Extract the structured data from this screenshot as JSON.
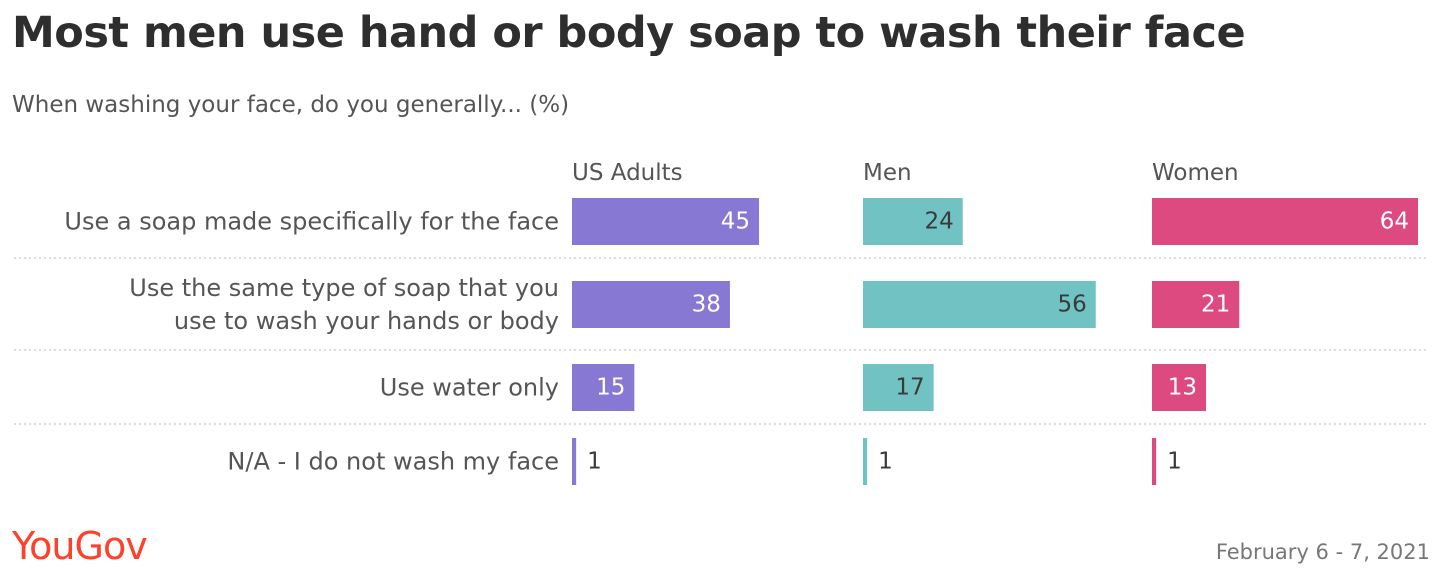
{
  "header": {
    "title": "Most men use hand or body soap to wash their face",
    "subtitle": "When washing your face, do you generally... (%)"
  },
  "footer": {
    "brand": "YouGov",
    "date": "February 6 - 7, 2021"
  },
  "chart_data": {
    "type": "bar",
    "orientation": "horizontal",
    "categories": [
      [
        "Use a soap made specifically for the face"
      ],
      [
        "Use the same type of soap that you",
        "use to wash your hands or body"
      ],
      [
        "Use water only"
      ],
      [
        "N/A - I do not wash my face"
      ]
    ],
    "series": [
      {
        "name": "US Adults",
        "values": [
          45,
          38,
          15,
          1
        ],
        "color": "#8778d4"
      },
      {
        "name": "Men",
        "values": [
          24,
          56,
          17,
          1
        ],
        "color": "#71c3c3"
      },
      {
        "name": "Women",
        "values": [
          64,
          21,
          13,
          1
        ],
        "color": "#dc4a7f"
      }
    ],
    "label_colors": {
      "inside_dark": "#3a3a3a",
      "inside_light": "#ffffff",
      "outside": "#3a3a3a"
    },
    "xlim": [
      0,
      64
    ],
    "grid": false,
    "legend": "top"
  }
}
